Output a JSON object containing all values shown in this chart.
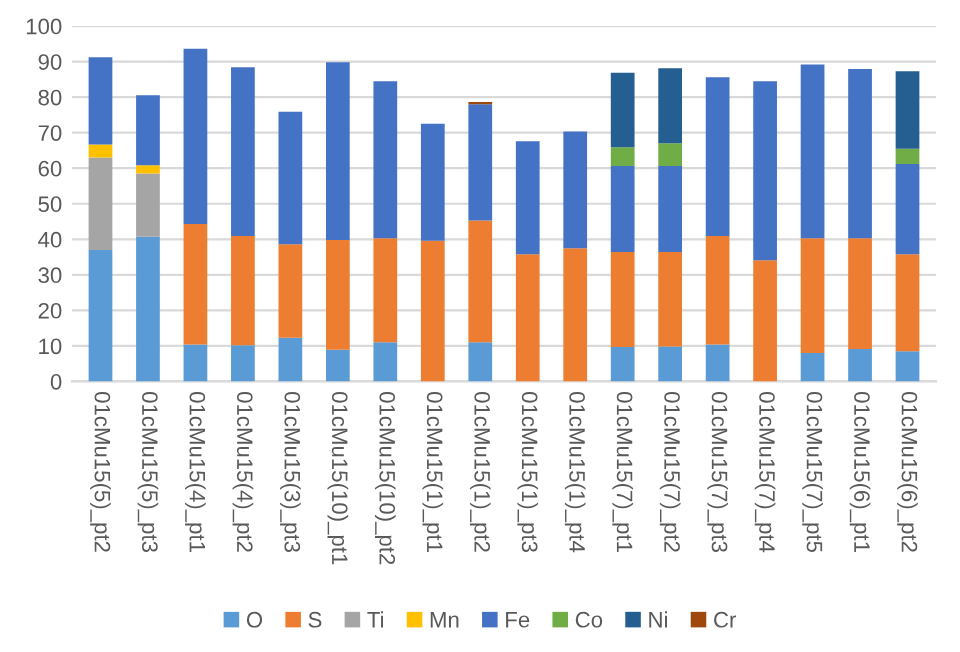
{
  "chart_data": {
    "type": "bar",
    "stacked": true,
    "categories": [
      "01cMu15(5)_pt2",
      "01cMu15(5)_pt3",
      "01cMu15(4)_pt1",
      "01cMu15(4)_pt2",
      "01cMu15(3)_pt3",
      "01cMu15(10)_pt1",
      "01cMu15(10)_pt2",
      "01cMu15(1)_pt1",
      "01cMu15(1)_pt2",
      "01cMu15(1)_pt3",
      "01cMu15(1)_pt4",
      "01cMu15(7)_pt1",
      "01cMu15(7)_pt2",
      "01cMu15(7)_pt3",
      "01cMu15(7)_pt4",
      "01cMu15(7)_pt5",
      "01cMu15(6)_pt1",
      "01cMu15(6)_pt2"
    ],
    "series": [
      {
        "name": "O",
        "color": "#5b9bd5",
        "values": [
          37,
          40.7,
          10.4,
          10.2,
          12.3,
          8.9,
          11,
          0,
          11,
          0,
          0,
          9.7,
          9.8,
          10.4,
          0,
          8,
          9.1,
          8.5
        ]
      },
      {
        "name": "S",
        "color": "#ed7d31",
        "values": [
          0,
          0,
          33.9,
          30.7,
          26.3,
          30.9,
          29.3,
          39.6,
          34.3,
          35.8,
          37.5,
          26.7,
          26.6,
          30.5,
          34.1,
          32.3,
          31.2,
          27.3
        ]
      },
      {
        "name": "Ti",
        "color": "#a5a5a5",
        "values": [
          26,
          17.8,
          0,
          0,
          0,
          0,
          0,
          0,
          0,
          0,
          0,
          0,
          0,
          0,
          0,
          0,
          0,
          0
        ]
      },
      {
        "name": "Mn",
        "color": "#ffc000",
        "values": [
          3.7,
          2.3,
          0,
          0,
          0,
          0,
          0,
          0,
          0,
          0,
          0,
          0,
          0,
          0,
          0,
          0,
          0,
          0
        ]
      },
      {
        "name": "Fe",
        "color": "#4472c4",
        "values": [
          24.5,
          19.7,
          49.3,
          47.5,
          37.3,
          50,
          44.2,
          32.9,
          32.7,
          31.8,
          32.8,
          24.2,
          24.2,
          44.7,
          50.4,
          48.9,
          47.6,
          25.4
        ]
      },
      {
        "name": "Co",
        "color": "#70ad47",
        "values": [
          0,
          0,
          0,
          0,
          0,
          0,
          0,
          0,
          0,
          0,
          0,
          5.3,
          6.4,
          0,
          0,
          0,
          0,
          4.3
        ]
      },
      {
        "name": "Ni",
        "color": "#255e91",
        "values": [
          0,
          0,
          0,
          0,
          0,
          0,
          0,
          0,
          0,
          0,
          0,
          21,
          21.1,
          0,
          0,
          0,
          0,
          21.8
        ]
      },
      {
        "name": "Cr",
        "color": "#9e480e",
        "values": [
          0,
          0,
          0,
          0,
          0,
          0,
          0,
          0,
          0.6,
          0,
          0,
          0,
          0,
          0,
          0,
          0,
          0,
          0
        ]
      }
    ],
    "ylim": [
      0,
      100
    ],
    "yticks": [
      0,
      10,
      20,
      30,
      40,
      50,
      60,
      70,
      80,
      90,
      100
    ],
    "grid": "y",
    "legend": "bottom"
  }
}
